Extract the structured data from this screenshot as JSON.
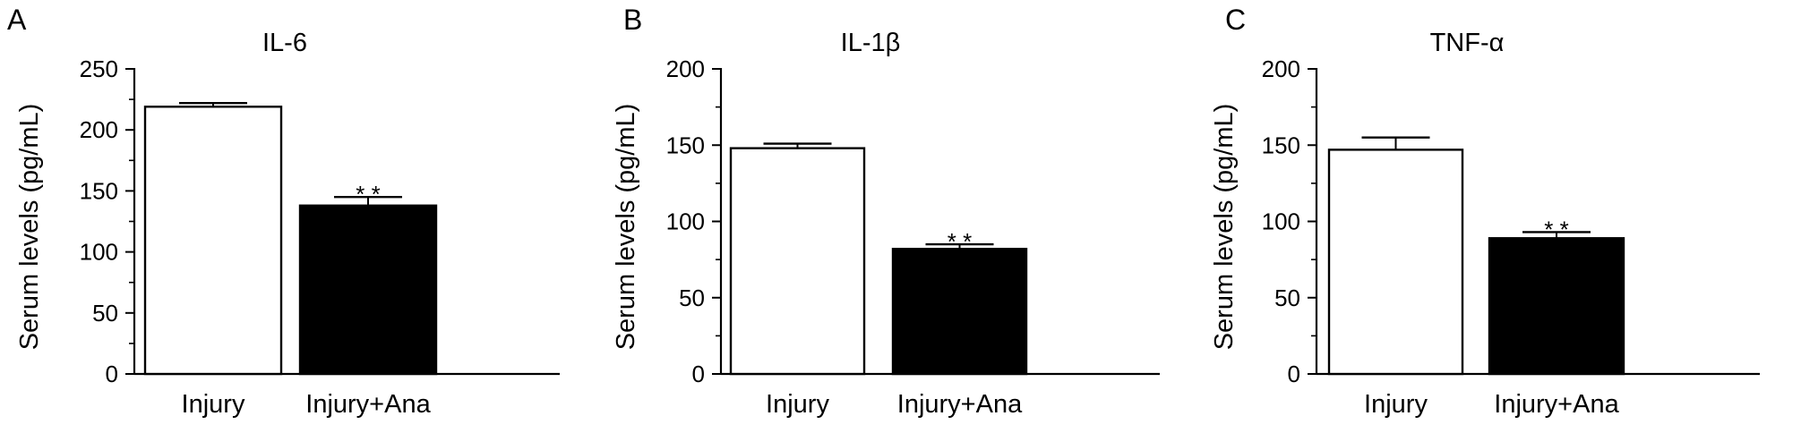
{
  "figure": {
    "panels": [
      "A",
      "B",
      "C"
    ]
  },
  "chart_data": [
    {
      "type": "bar",
      "panel_label": "A",
      "title": "IL-6",
      "ylabel": "Serum levels (pg/mL)",
      "xlabel": "",
      "categories": [
        "Injury",
        "Injury+Ana"
      ],
      "values": [
        219,
        138
      ],
      "errors": [
        3,
        7
      ],
      "bar_fill": [
        "#ffffff",
        "#000000"
      ],
      "significance": [
        "",
        "* *"
      ],
      "ylim": [
        0,
        250
      ],
      "yticks": [
        0,
        50,
        100,
        150,
        200,
        250
      ],
      "yticks_minor": [
        25,
        75,
        125,
        175,
        225
      ],
      "grid": false,
      "legend": "none"
    },
    {
      "type": "bar",
      "panel_label": "B",
      "title": "IL-1β",
      "ylabel": "Serum levels (pg/mL)",
      "xlabel": "",
      "categories": [
        "Injury",
        "Injury+Ana"
      ],
      "values": [
        148,
        82
      ],
      "errors": [
        3,
        3
      ],
      "bar_fill": [
        "#ffffff",
        "#000000"
      ],
      "significance": [
        "",
        "* *"
      ],
      "ylim": [
        0,
        200
      ],
      "yticks": [
        0,
        50,
        100,
        150,
        200
      ],
      "yticks_minor": [
        25,
        75,
        125,
        175
      ],
      "grid": false,
      "legend": "none"
    },
    {
      "type": "bar",
      "panel_label": "C",
      "title": "TNF-α",
      "ylabel": "Serum levels (pg/mL)",
      "xlabel": "",
      "categories": [
        "Injury",
        "Injury+Ana"
      ],
      "values": [
        147,
        89
      ],
      "errors": [
        8,
        4
      ],
      "bar_fill": [
        "#ffffff",
        "#000000"
      ],
      "significance": [
        "",
        "* *"
      ],
      "ylim": [
        0,
        200
      ],
      "yticks": [
        0,
        50,
        100,
        150,
        200
      ],
      "yticks_minor": [
        25,
        75,
        125,
        175
      ],
      "grid": false,
      "legend": "none"
    }
  ]
}
